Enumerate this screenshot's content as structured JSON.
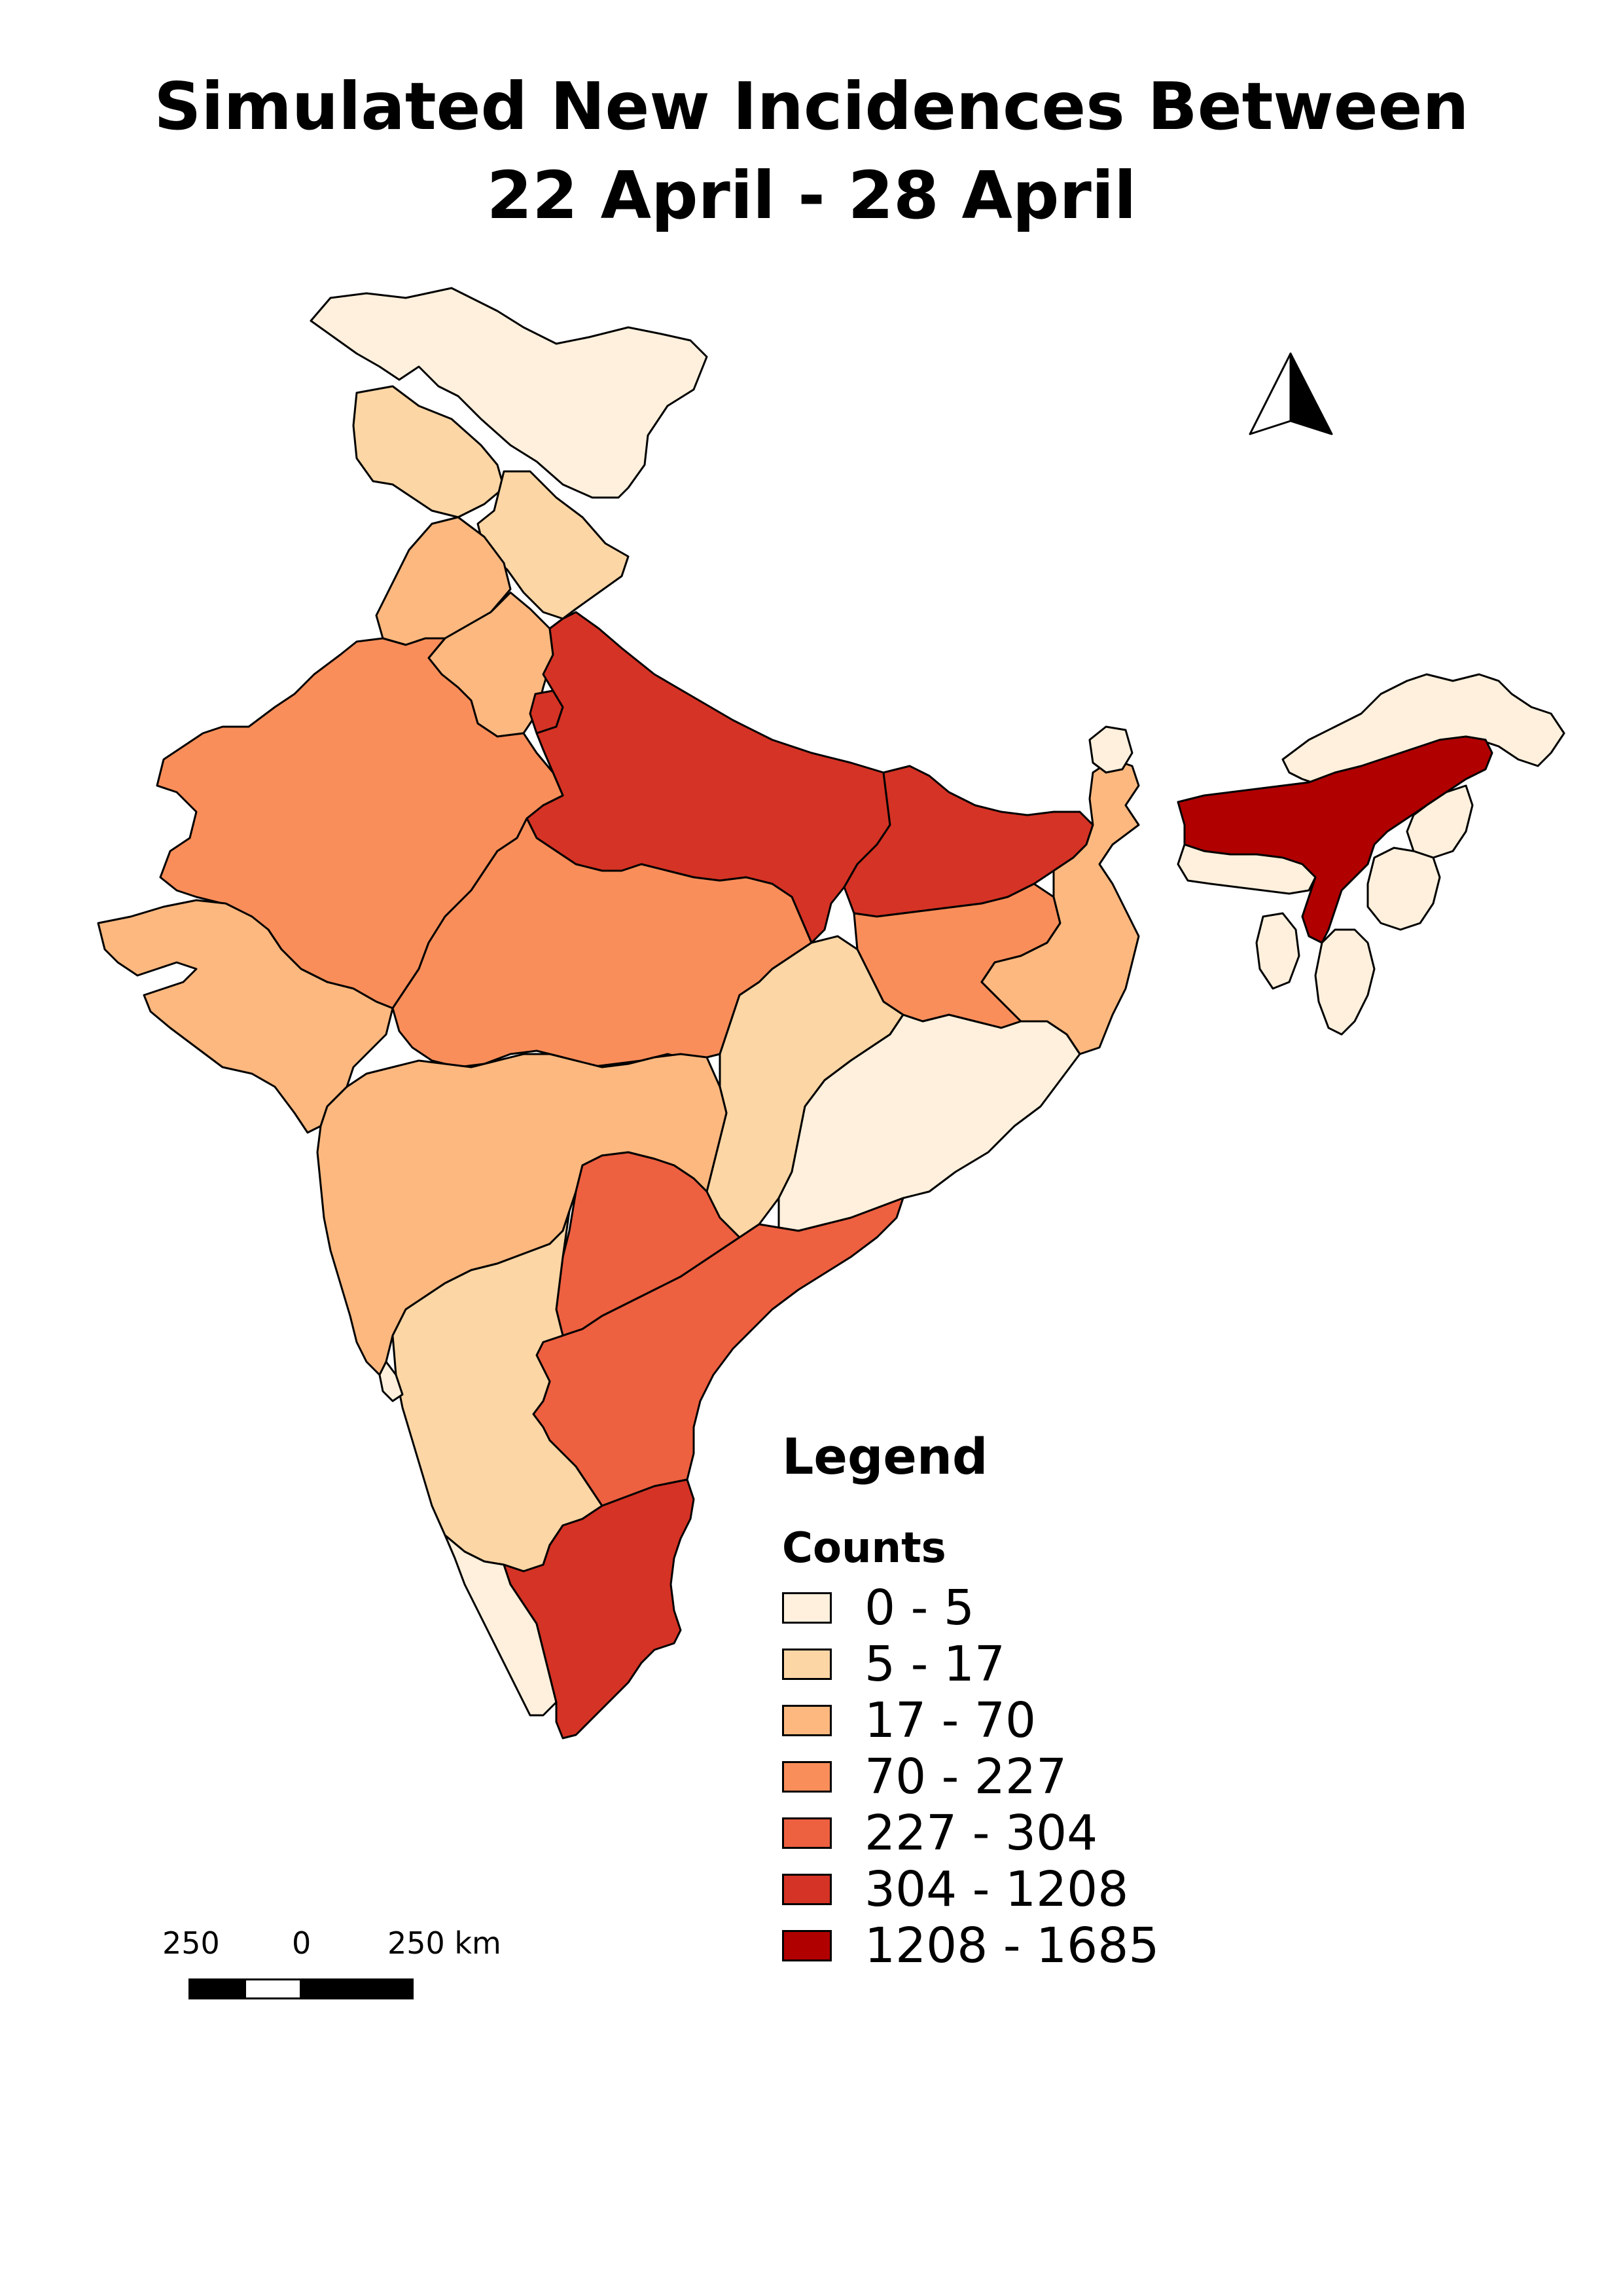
{
  "title": {
    "line1": "Simulated New Incidences Between",
    "line2": "22 April - 28 April"
  },
  "legend": {
    "title": "Legend",
    "subtitle": "Counts",
    "classes": [
      {
        "label": "0 - 5",
        "color": "#fef0dc"
      },
      {
        "label": "5 - 17",
        "color": "#fcd6a5"
      },
      {
        "label": "17 - 70",
        "color": "#fcb87f"
      },
      {
        "label": "70 - 227",
        "color": "#f98e5a"
      },
      {
        "label": "227 - 304",
        "color": "#ed6040"
      },
      {
        "label": "304 - 1208",
        "color": "#d53325"
      },
      {
        "label": "1208 - 1685",
        "color": "#b00000"
      }
    ]
  },
  "scale_bar": {
    "labels": [
      "250",
      "0",
      "250 km"
    ]
  },
  "north_arrow": {
    "icon": "north-arrow-icon"
  },
  "regions": [
    {
      "name": "Jammu and Kashmir",
      "class": 0
    },
    {
      "name": "Himachal Pradesh",
      "class": 1
    },
    {
      "name": "Uttarakhand",
      "class": 1
    },
    {
      "name": "Punjab",
      "class": 2
    },
    {
      "name": "Haryana",
      "class": 2
    },
    {
      "name": "Uttar Pradesh",
      "class": 5
    },
    {
      "name": "Rajasthan",
      "class": 3
    },
    {
      "name": "Gujarat",
      "class": 2
    },
    {
      "name": "Madhya Pradesh",
      "class": 3
    },
    {
      "name": "Delhi",
      "class": 5
    },
    {
      "name": "Bihar",
      "class": 5
    },
    {
      "name": "Jharkhand",
      "class": 3
    },
    {
      "name": "West Bengal",
      "class": 2
    },
    {
      "name": "Sikkim",
      "class": 0
    },
    {
      "name": "Chhattisgarh",
      "class": 1
    },
    {
      "name": "Odisha",
      "class": 0
    },
    {
      "name": "Maharashtra",
      "class": 2
    },
    {
      "name": "Telangana",
      "class": 4
    },
    {
      "name": "Andhra Pradesh",
      "class": 4
    },
    {
      "name": "Karnataka",
      "class": 1
    },
    {
      "name": "Goa",
      "class": 0
    },
    {
      "name": "Kerala",
      "class": 0
    },
    {
      "name": "Tamil Nadu",
      "class": 5
    },
    {
      "name": "Assam",
      "class": 6
    },
    {
      "name": "Arunachal Pradesh",
      "class": 0
    },
    {
      "name": "Meghalaya",
      "class": 0
    },
    {
      "name": "Nagaland",
      "class": 0
    },
    {
      "name": "Manipur",
      "class": 0
    },
    {
      "name": "Mizoram",
      "class": 0
    },
    {
      "name": "Tripura",
      "class": 0
    }
  ]
}
